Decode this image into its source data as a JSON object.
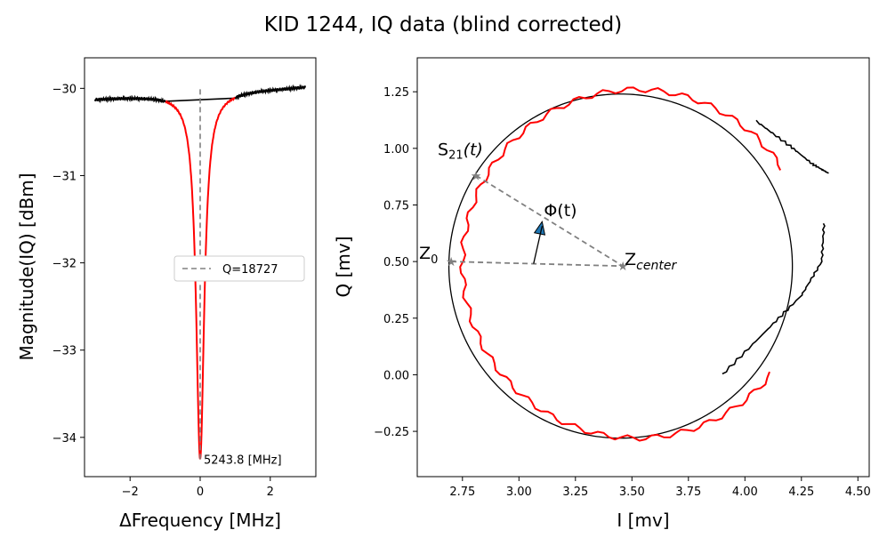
{
  "figure": {
    "title": "KID 1244, IQ data (blind corrected)"
  },
  "chart_data": [
    {
      "type": "line",
      "xlabel": "ΔFrequency [MHz]",
      "ylabel": "Magnitude(IQ) [dBm]",
      "xlim": [
        -3.3,
        3.3
      ],
      "ylim": [
        -34.45,
        -29.65
      ],
      "xticks": [
        -2,
        0,
        2
      ],
      "xtick_labels": [
        "−2",
        "0",
        "2"
      ],
      "yticks": [
        -30,
        -31,
        -32,
        -33,
        -34
      ],
      "ytick_labels": [
        "−30",
        "−31",
        "−32",
        "−33",
        "−34"
      ],
      "grid": false,
      "legend": {
        "placement": "center-right",
        "entries": [
          "Q=18727"
        ]
      },
      "resonance": {
        "f0_mhz": 0,
        "min_dbm": -34.25,
        "half_width_mhz": 0.14,
        "baseline_left_dbm": -30.12,
        "baseline_right_dbm": -29.98
      },
      "fit_window_mhz": [
        -1.0,
        1.0
      ],
      "colors": {
        "data": "#000000",
        "fit": "#ff0000",
        "marker": "#808080"
      },
      "series": [
        {
          "name": "Q=18727",
          "style": "dashed",
          "x": [
            0,
            0
          ],
          "y": [
            -34.25,
            -30.0
          ]
        }
      ],
      "annotations": [
        {
          "text": "5243.8 [MHz]",
          "x": 0.05,
          "y": -34.25
        }
      ]
    },
    {
      "type": "line",
      "xlabel": "I [mv]",
      "ylabel": "Q [mv]",
      "xlim": [
        2.55,
        4.55
      ],
      "ylim": [
        -0.45,
        1.4
      ],
      "xticks": [
        2.75,
        3.0,
        3.25,
        3.5,
        3.75,
        4.0,
        4.25,
        4.5
      ],
      "xtick_labels": [
        "2.75",
        "3.00",
        "3.25",
        "3.50",
        "3.75",
        "4.00",
        "4.25",
        "4.50"
      ],
      "yticks": [
        -0.25,
        0.0,
        0.25,
        0.5,
        0.75,
        1.0,
        1.25
      ],
      "ytick_labels": [
        "−0.25",
        "0.00",
        "0.25",
        "0.50",
        "0.75",
        "1.00",
        "1.25"
      ],
      "grid": false,
      "circle_fit": {
        "center_i": 3.45,
        "center_q": 0.48,
        "radius": 0.76
      },
      "fit_loop": {
        "center_i": 3.52,
        "center_q": 0.49,
        "radius": 0.77
      },
      "data_tail": {
        "upper": [
          [
            4.05,
            1.12
          ],
          [
            4.2,
            1.01
          ],
          [
            4.3,
            0.93
          ],
          [
            4.37,
            0.89
          ]
        ],
        "lower": [
          [
            3.9,
            0.0
          ],
          [
            4.1,
            0.2
          ],
          [
            4.25,
            0.35
          ],
          [
            4.34,
            0.5
          ],
          [
            4.35,
            0.67
          ]
        ]
      },
      "colors": {
        "data": "#000000",
        "fit": "#ff0000",
        "circle": "#000000",
        "marker": "#808080",
        "arrow": "#1f77b4"
      },
      "points": {
        "s21": {
          "i": 2.81,
          "q": 0.88,
          "label": "S",
          "sub": "21",
          "tail": "(t)"
        },
        "z0": {
          "i": 2.7,
          "q": 0.5,
          "label": "Z",
          "sub": "0"
        },
        "zcenter": {
          "i": 3.46,
          "q": 0.48,
          "label": "Z",
          "sub": "center"
        }
      },
      "phi_label": "Φ(t)"
    }
  ]
}
